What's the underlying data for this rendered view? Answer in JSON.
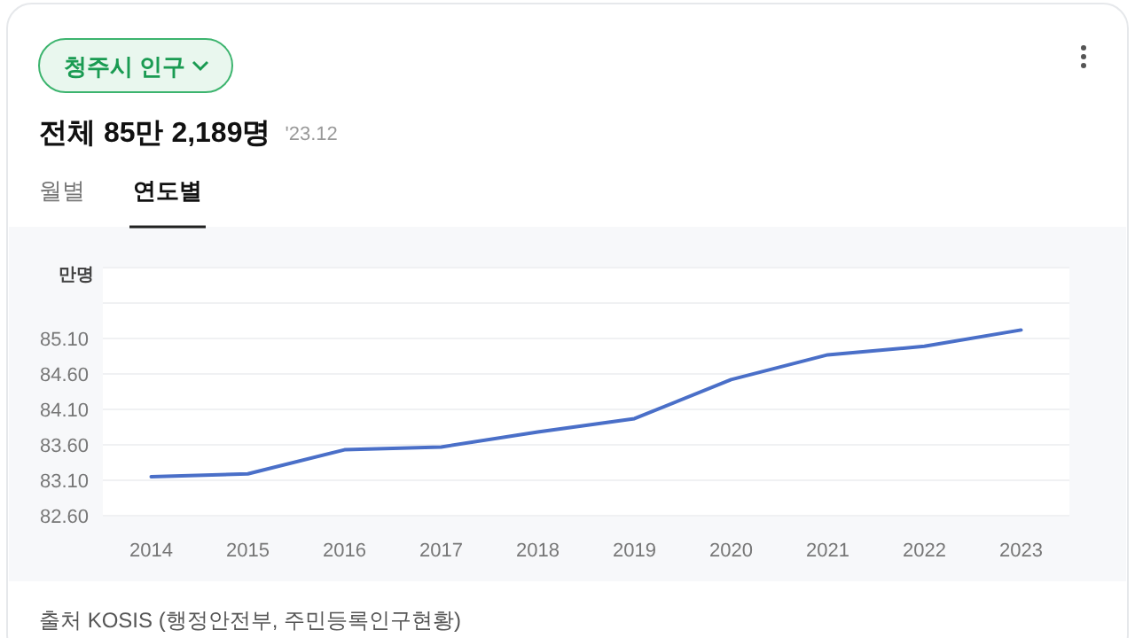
{
  "chart_data": {
    "type": "line",
    "title": "청주시 인구",
    "subtitle": "전체 85만 2,189명",
    "annotations": [
      "'23.12",
      "월별",
      "연도별",
      "출처 KOSIS (행정안전부, 주민등록인구현황)"
    ],
    "ylabel": "만명",
    "categories": [
      "2014",
      "2015",
      "2016",
      "2017",
      "2018",
      "2019",
      "2020",
      "2021",
      "2022",
      "2023"
    ],
    "series": [
      {
        "color": "#4a6fc8",
        "values": [
          83.15,
          83.19,
          83.53,
          83.57,
          83.78,
          83.97,
          84.52,
          84.87,
          84.99,
          85.22
        ]
      }
    ],
    "ylim": [
      82.6,
      86.1
    ],
    "yticks": [
      {
        "value": 82.6,
        "label": "82.60"
      },
      {
        "value": 83.1,
        "label": "83.10"
      },
      {
        "value": 83.6,
        "label": "83.60"
      },
      {
        "value": 84.1,
        "label": "84.10"
      },
      {
        "value": 84.6,
        "label": "84.60"
      },
      {
        "value": 85.1,
        "label": "85.10"
      },
      {
        "value": 85.6,
        "label": null
      },
      {
        "value": 86.1,
        "label": null
      }
    ],
    "grid": "y",
    "marker": "none",
    "line_style": "solid"
  }
}
